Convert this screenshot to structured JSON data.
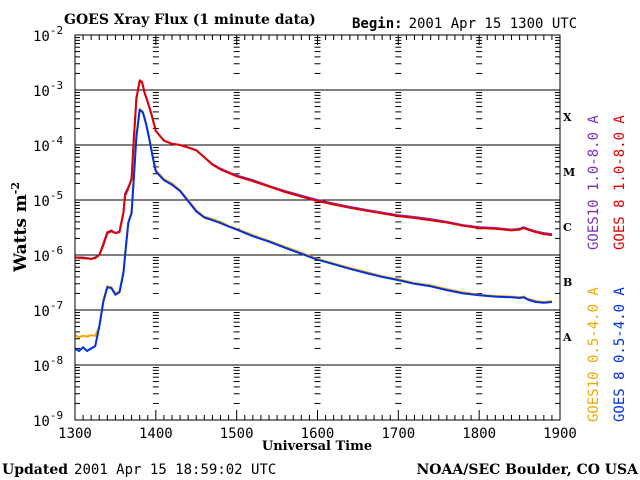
{
  "header": {
    "title": "GOES Xray Flux (1 minute data)",
    "begin_label": "Begin:",
    "begin_value": "2001 Apr 15 1300 UTC"
  },
  "footer": {
    "updated_label": "Updated",
    "updated_value": "2001 Apr 15 18:59:02 UTC",
    "credit": "NOAA/SEC Boulder, CO USA"
  },
  "colors": {
    "goes10_long": "#7b2fbe",
    "goes8_long": "#e00000",
    "goes10_short": "#f0a800",
    "goes8_short": "#0030e0"
  },
  "chart_data": {
    "type": "line",
    "title": "GOES Xray Flux (1 minute data)",
    "xlabel": "Universal Time",
    "ylabel": "Watts m",
    "ylabel_sup": "-2",
    "xlim": [
      1300,
      1900
    ],
    "ylim": [
      1e-09,
      0.01
    ],
    "y_scale": "log",
    "x_ticks": [
      "1300",
      "1400",
      "1500",
      "1600",
      "1700",
      "1800",
      "1900"
    ],
    "x_tick_values": [
      1300,
      1400,
      1500,
      1600,
      1700,
      1800,
      1900
    ],
    "y_ticks": [
      {
        "base": "10",
        "exp": "-2",
        "value": 0.01
      },
      {
        "base": "10",
        "exp": "-3",
        "value": 0.001
      },
      {
        "base": "10",
        "exp": "-4",
        "value": 0.0001
      },
      {
        "base": "10",
        "exp": "-5",
        "value": 1e-05
      },
      {
        "base": "10",
        "exp": "-6",
        "value": 1e-06
      },
      {
        "base": "10",
        "exp": "-7",
        "value": 1e-07
      },
      {
        "base": "10",
        "exp": "-8",
        "value": 1e-08
      },
      {
        "base": "10",
        "exp": "-9",
        "value": 1e-09
      }
    ],
    "flare_classes": [
      {
        "label": "X",
        "value": 0.00032
      },
      {
        "label": "M",
        "value": 3.2e-05
      },
      {
        "label": "C",
        "value": 3.2e-06
      },
      {
        "label": "B",
        "value": 3.2e-07
      },
      {
        "label": "A",
        "value": 3.2e-08
      }
    ],
    "grid": "horizontal at decades",
    "legend_right": [
      {
        "text": "GOES10 1.0-8.0 A",
        "series": "goes10_long"
      },
      {
        "text": "GOES 8 1.0-8.0 A",
        "series": "goes8_long"
      },
      {
        "text": "GOES10 0.5-4.0 A",
        "series": "goes10_short"
      },
      {
        "text": "GOES 8 0.5-4.0 A",
        "series": "goes8_short"
      }
    ],
    "series": [
      {
        "name": "GOES10 1.0-8.0 A",
        "key": "goes10_long",
        "x": [
          1300,
          1310,
          1320,
          1325,
          1330,
          1335,
          1340,
          1345,
          1350,
          1355,
          1360,
          1362,
          1365,
          1368,
          1370,
          1373,
          1376,
          1380,
          1383,
          1386,
          1390,
          1395,
          1400,
          1410,
          1420,
          1430,
          1440,
          1450,
          1460,
          1470,
          1480,
          1490,
          1500,
          1520,
          1540,
          1560,
          1580,
          1600,
          1620,
          1640,
          1660,
          1680,
          1700,
          1720,
          1740,
          1760,
          1780,
          1800,
          1820,
          1840,
          1850,
          1855,
          1860,
          1870,
          1880,
          1890
        ],
        "y": [
          9e-07,
          9e-07,
          8.5e-07,
          9e-07,
          1e-06,
          1.6e-06,
          2.6e-06,
          2.8e-06,
          2.5e-06,
          2.7e-06,
          6e-06,
          1.3e-05,
          1.6e-05,
          2e-05,
          2.5e-05,
          0.00015,
          0.0007,
          0.00145,
          0.00135,
          0.0009,
          0.0006,
          0.00035,
          0.00018,
          0.00012,
          0.000105,
          0.0001,
          9e-05,
          8e-05,
          6e-05,
          4.5e-05,
          3.7e-05,
          3.2e-05,
          2.8e-05,
          2.3e-05,
          1.8e-05,
          1.45e-05,
          1.2e-05,
          1e-05,
          8.6e-06,
          7.5e-06,
          6.6e-06,
          5.9e-06,
          5.3e-06,
          4.9e-06,
          4.5e-06,
          4e-06,
          3.5e-06,
          3.2e-06,
          3.1e-06,
          2.9e-06,
          3e-06,
          3.2e-06,
          3e-06,
          2.7e-06,
          2.5e-06,
          2.4e-06
        ]
      },
      {
        "name": "GOES 8 1.0-8.0 A",
        "key": "goes8_long",
        "x": [
          1300,
          1310,
          1320,
          1325,
          1330,
          1335,
          1340,
          1345,
          1350,
          1355,
          1360,
          1362,
          1365,
          1368,
          1370,
          1373,
          1376,
          1380,
          1383,
          1386,
          1390,
          1395,
          1400,
          1410,
          1420,
          1430,
          1440,
          1450,
          1460,
          1470,
          1480,
          1490,
          1500,
          1520,
          1540,
          1560,
          1580,
          1600,
          1620,
          1640,
          1660,
          1680,
          1700,
          1720,
          1740,
          1760,
          1780,
          1800,
          1820,
          1840,
          1850,
          1855,
          1860,
          1870,
          1880,
          1890
        ],
        "y": [
          9e-07,
          8.8e-07,
          8.5e-07,
          8.8e-07,
          1e-06,
          1.5e-06,
          2.5e-06,
          2.7e-06,
          2.5e-06,
          2.6e-06,
          6e-06,
          1.2e-05,
          1.5e-05,
          2e-05,
          2.4e-05,
          0.00014,
          0.0007,
          0.0015,
          0.0014,
          0.0009,
          0.0006,
          0.00034,
          0.00018,
          0.00012,
          0.000105,
          0.0001,
          9e-05,
          8e-05,
          6e-05,
          4.4e-05,
          3.6e-05,
          3.1e-05,
          2.7e-05,
          2.2e-05,
          1.75e-05,
          1.4e-05,
          1.15e-05,
          9.6e-06,
          8.3e-06,
          7.2e-06,
          6.4e-06,
          5.7e-06,
          5.1e-06,
          4.7e-06,
          4.3e-06,
          3.9e-06,
          3.4e-06,
          3.1e-06,
          3e-06,
          2.8e-06,
          2.9e-06,
          3.1e-06,
          2.9e-06,
          2.6e-06,
          2.4e-06,
          2.3e-06
        ]
      },
      {
        "name": "GOES10 0.5-4.0 A",
        "key": "goes10_short",
        "x": [
          1300,
          1305,
          1310,
          1315,
          1320,
          1325,
          1330,
          1335,
          1340,
          1345,
          1350,
          1355,
          1360,
          1363,
          1366,
          1370,
          1373,
          1376,
          1380,
          1384,
          1388,
          1392,
          1396,
          1400,
          1410,
          1420,
          1430,
          1440,
          1450,
          1460,
          1470,
          1480,
          1490,
          1500,
          1520,
          1540,
          1560,
          1580,
          1600,
          1620,
          1640,
          1660,
          1680,
          1700,
          1720,
          1740,
          1760,
          1780,
          1800,
          1820,
          1840,
          1850,
          1855,
          1860,
          1870,
          1880,
          1890
        ],
        "y": [
          3.5e-08,
          3.2e-08,
          3.4e-08,
          3.3e-08,
          3.5e-08,
          3.4e-08,
          5e-08,
          1.5e-07,
          2.7e-07,
          2.6e-07,
          2e-07,
          2.2e-07,
          5e-07,
          1.5e-06,
          4e-06,
          6e-06,
          3e-05,
          0.00015,
          0.00045,
          0.0004,
          0.00025,
          0.00013,
          6.5e-05,
          3.5e-05,
          2.4e-05,
          2e-05,
          1.5e-05,
          1e-05,
          6.5e-06,
          5e-06,
          4.5e-06,
          4e-06,
          3.4e-06,
          3e-06,
          2.3e-06,
          1.8e-06,
          1.4e-06,
          1.1e-06,
          8.5e-07,
          7e-07,
          5.8e-07,
          4.9e-07,
          4.1e-07,
          3.6e-07,
          3.1e-07,
          2.8e-07,
          2.4e-07,
          2.1e-07,
          1.9e-07,
          1.8e-07,
          1.75e-07,
          1.7e-07,
          1.75e-07,
          1.6e-07,
          1.45e-07,
          1.4e-07,
          1.45e-07
        ]
      },
      {
        "name": "GOES 8 0.5-4.0 A",
        "key": "goes8_short",
        "x": [
          1300,
          1305,
          1310,
          1315,
          1320,
          1325,
          1330,
          1335,
          1340,
          1345,
          1350,
          1355,
          1360,
          1363,
          1366,
          1370,
          1373,
          1376,
          1380,
          1384,
          1388,
          1392,
          1396,
          1400,
          1410,
          1420,
          1430,
          1440,
          1450,
          1460,
          1470,
          1480,
          1490,
          1500,
          1520,
          1540,
          1560,
          1580,
          1600,
          1620,
          1640,
          1660,
          1680,
          1700,
          1720,
          1740,
          1760,
          1780,
          1800,
          1820,
          1840,
          1850,
          1855,
          1860,
          1870,
          1880,
          1890
        ],
        "y": [
          2e-08,
          1.8e-08,
          2.1e-08,
          1.8e-08,
          2e-08,
          2.2e-08,
          5e-08,
          1.4e-07,
          2.6e-07,
          2.5e-07,
          1.9e-07,
          2.1e-07,
          4.8e-07,
          1.4e-06,
          3.8e-06,
          5.8e-06,
          2.8e-05,
          0.00014,
          0.00044,
          0.00039,
          0.00024,
          0.000125,
          6.2e-05,
          3.3e-05,
          2.3e-05,
          1.9e-05,
          1.45e-05,
          9.5e-06,
          6.2e-06,
          4.8e-06,
          4.3e-06,
          3.8e-06,
          3.3e-06,
          2.9e-06,
          2.2e-06,
          1.75e-06,
          1.35e-06,
          1.05e-06,
          8.2e-07,
          6.8e-07,
          5.6e-07,
          4.7e-07,
          4e-07,
          3.5e-07,
          3e-07,
          2.7e-07,
          2.3e-07,
          2e-07,
          1.85e-07,
          1.75e-07,
          1.7e-07,
          1.65e-07,
          1.7e-07,
          1.55e-07,
          1.4e-07,
          1.35e-07,
          1.4e-07
        ]
      }
    ]
  }
}
